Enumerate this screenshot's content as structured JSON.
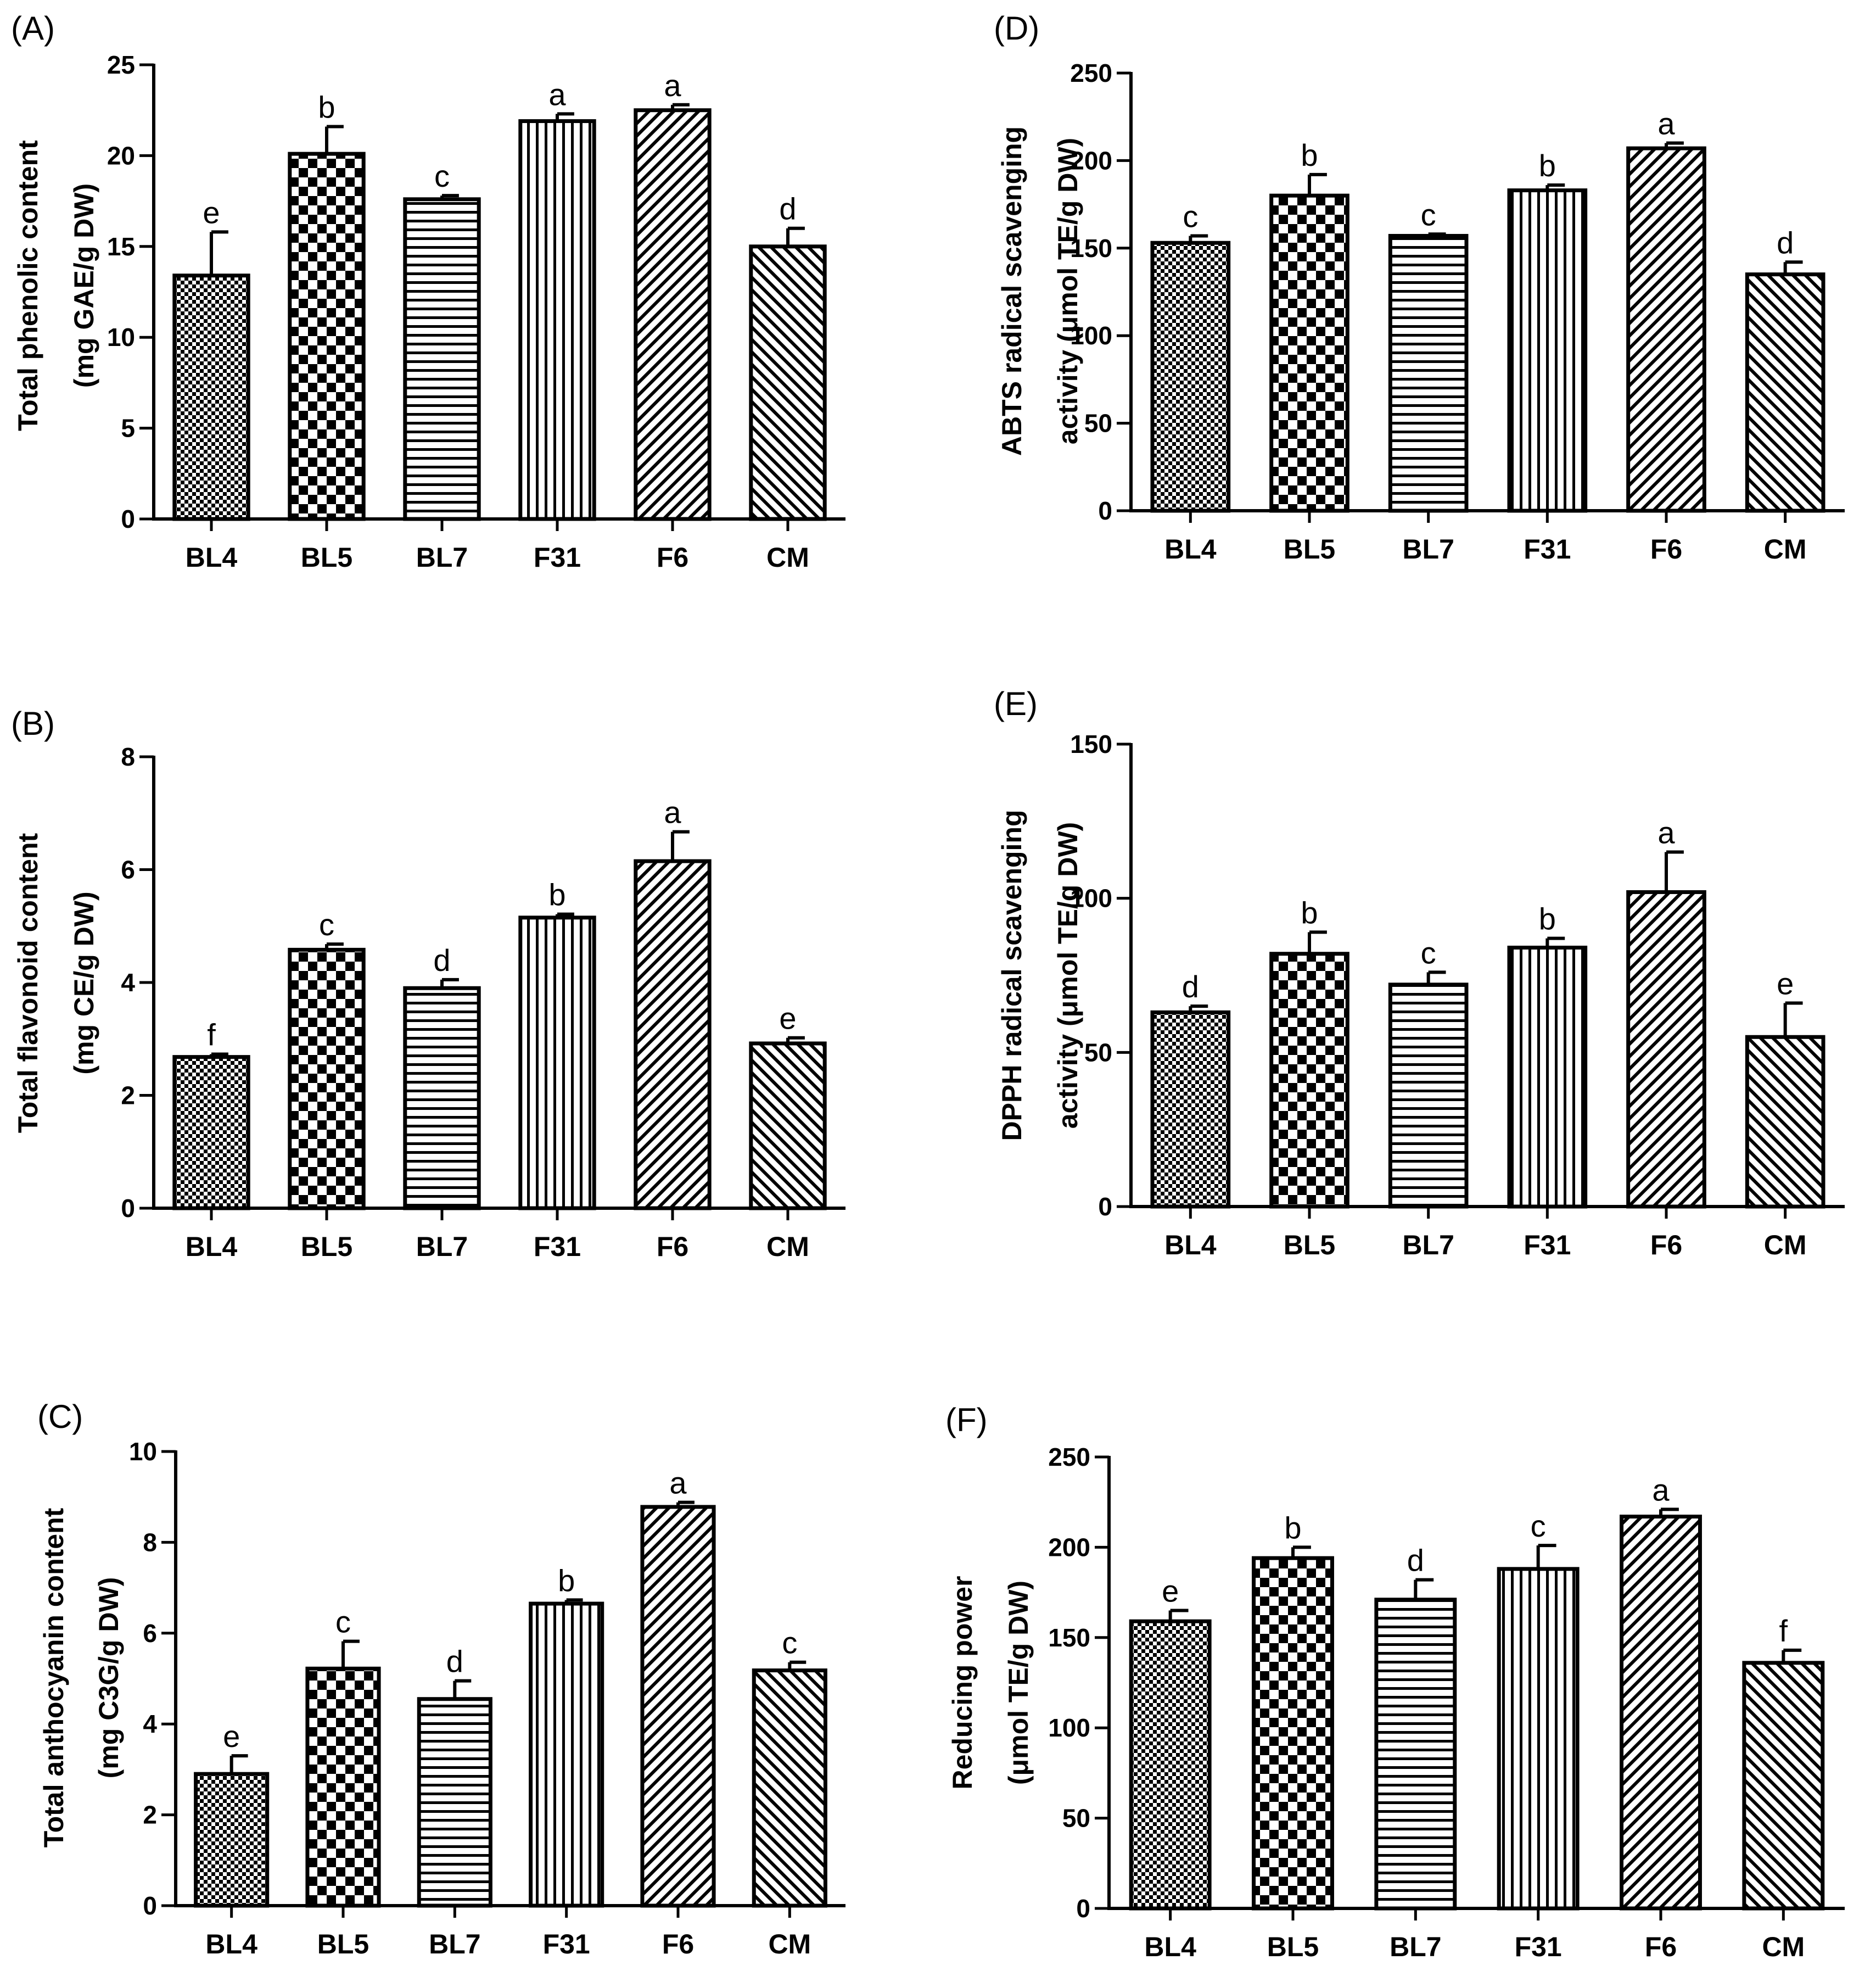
{
  "chart_data": [
    {
      "type": "bar",
      "panel": "(A)",
      "categories": [
        "BL4",
        "BL5",
        "BL7",
        "F31",
        "F6",
        "CM"
      ],
      "values": [
        13.4,
        20.1,
        17.6,
        21.9,
        22.5,
        15.0
      ],
      "errors": [
        2.4,
        1.5,
        0.2,
        0.4,
        0.3,
        1.0
      ],
      "letters": [
        "e",
        "b",
        "c",
        "a",
        "a",
        "d"
      ],
      "ylabel_lines": [
        "Total phenolic content",
        "(mg GAE/g DW)"
      ],
      "ylim": [
        0,
        25
      ],
      "yticks": [
        0,
        5,
        10,
        15,
        20,
        25
      ]
    },
    {
      "type": "bar",
      "panel": "(B)",
      "categories": [
        "BL4",
        "BL5",
        "BL7",
        "F31",
        "F6",
        "CM"
      ],
      "values": [
        2.68,
        4.58,
        3.9,
        5.15,
        6.15,
        2.92
      ],
      "errors": [
        0.05,
        0.1,
        0.15,
        0.06,
        0.52,
        0.1
      ],
      "letters": [
        "f",
        "c",
        "d",
        "b",
        "a",
        "e"
      ],
      "ylabel_lines": [
        "Total flavonoid content",
        "(mg CE/g DW)"
      ],
      "ylim": [
        0,
        8
      ],
      "yticks": [
        0,
        2,
        4,
        6,
        8
      ]
    },
    {
      "type": "bar",
      "panel": "(C)",
      "categories": [
        "BL4",
        "BL5",
        "BL7",
        "F31",
        "F6",
        "CM"
      ],
      "values": [
        2.9,
        5.22,
        4.55,
        6.65,
        8.78,
        5.18
      ],
      "errors": [
        0.4,
        0.6,
        0.4,
        0.08,
        0.1,
        0.18
      ],
      "letters": [
        "e",
        "c",
        "d",
        "b",
        "a",
        "c"
      ],
      "ylabel_lines": [
        "Total anthocyanin content",
        "(mg C3G/g DW)"
      ],
      "ylim": [
        0,
        10
      ],
      "yticks": [
        0,
        2,
        4,
        6,
        8,
        10
      ]
    },
    {
      "type": "bar",
      "panel": "(D)",
      "categories": [
        "BL4",
        "BL5",
        "BL7",
        "F31",
        "F6",
        "CM"
      ],
      "values": [
        153,
        180,
        157,
        183,
        207,
        135
      ],
      "errors": [
        4,
        12,
        1,
        3,
        3,
        7
      ],
      "letters": [
        "c",
        "b",
        "c",
        "b",
        "a",
        "d"
      ],
      "ylabel_lines": [
        "ABTS radical scavenging",
        "activity (μmol TE/g DW)"
      ],
      "ylim": [
        0,
        250
      ],
      "yticks": [
        0,
        50,
        100,
        150,
        200,
        250
      ]
    },
    {
      "type": "bar",
      "panel": "(E)",
      "categories": [
        "BL4",
        "BL5",
        "BL7",
        "F31",
        "F6",
        "CM"
      ],
      "values": [
        63,
        82,
        72,
        84,
        102,
        55
      ],
      "errors": [
        2,
        7,
        4,
        3,
        13,
        11
      ],
      "letters": [
        "d",
        "b",
        "c",
        "b",
        "a",
        "e"
      ],
      "ylabel_lines": [
        "DPPH radical scavenging",
        "activity (μmol TE/g DW)"
      ],
      "ylim": [
        0,
        150
      ],
      "yticks": [
        0,
        50,
        100,
        150
      ]
    },
    {
      "type": "bar",
      "panel": "(F)",
      "categories": [
        "BL4",
        "BL5",
        "BL7",
        "F31",
        "F6",
        "CM"
      ],
      "values": [
        159,
        194,
        171,
        188,
        217,
        136
      ],
      "errors": [
        6,
        6,
        11,
        13,
        4,
        7
      ],
      "letters": [
        "e",
        "b",
        "d",
        "c",
        "a",
        "f"
      ],
      "ylabel_lines": [
        "Reducing power",
        "(μmol TE/g DW)"
      ],
      "ylim": [
        0,
        250
      ],
      "yticks": [
        0,
        50,
        100,
        150,
        200,
        250
      ]
    }
  ]
}
